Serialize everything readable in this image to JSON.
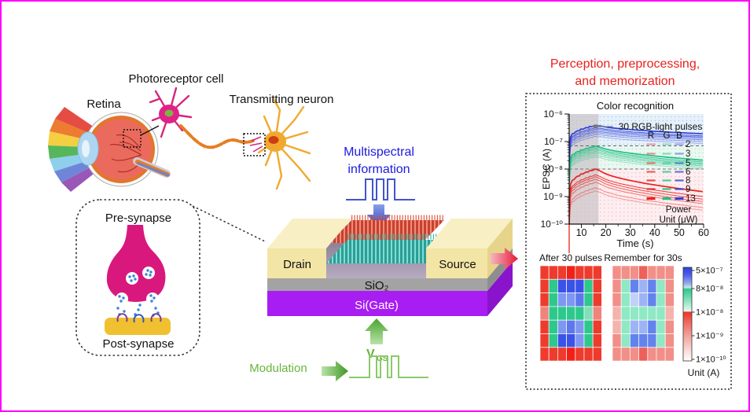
{
  "frame": {
    "border_color": "#ff00ff"
  },
  "anatomy": {
    "photoreceptor_label": "Photoreceptor cell",
    "retina_label": "Retina",
    "neuron_label": "Transmitting neuron"
  },
  "synapse": {
    "pre_label": "Pre-synapse",
    "post_label": "Post-synapse"
  },
  "device": {
    "input_line1": "Multispectral",
    "input_line2": "information",
    "drain": "Drain",
    "source": "Source",
    "oxide": "SiO₂",
    "gate": "Si(Gate)",
    "vgs_main": "V",
    "vgs_sub": "GS",
    "modulation": "Modulation"
  },
  "right_panel": {
    "title_line1": "Perception, preprocessing,",
    "title_line2": "and memorization"
  },
  "chart_data": {
    "type": "line",
    "title": "Color recognition",
    "xlabel": "Time (s)",
    "ylabel": "EPSC (A)",
    "x_range_s": [
      5,
      60
    ],
    "xticks": [
      10,
      20,
      30,
      40,
      50,
      60
    ],
    "xticks_minor": [
      15,
      25,
      35,
      45,
      55
    ],
    "y_log_range": [
      -10,
      -6
    ],
    "ytick_labels": [
      "10⁻⁶",
      "10⁻⁷",
      "10⁻⁸",
      "10⁻⁹",
      "10⁻¹⁰"
    ],
    "annotation": "30 RGB-light pulses",
    "stimulus_window_s": [
      5,
      17
    ],
    "dashed_levels_A": [
      7e-08,
      1e-08
    ],
    "legend": {
      "headers": [
        "R",
        "G",
        "B"
      ],
      "powers": [
        2,
        3,
        5,
        6,
        8,
        9,
        13
      ],
      "power_note_line1": "Power",
      "power_note_line2": "Unit (μW)"
    },
    "family_colors": {
      "R": "#e8231f",
      "G": "#1fbf83",
      "B": "#2e3fd8"
    },
    "series": [
      {
        "family": "R",
        "power": 2,
        "peak_A": 1.7e-09,
        "end_A": 3.2e-10
      },
      {
        "family": "R",
        "power": 3,
        "peak_A": 2.2e-09,
        "end_A": 4e-10
      },
      {
        "family": "R",
        "power": 5,
        "peak_A": 3.5e-09,
        "end_A": 5.5e-10
      },
      {
        "family": "R",
        "power": 6,
        "peak_A": 4.5e-09,
        "end_A": 6.5e-10
      },
      {
        "family": "R",
        "power": 8,
        "peak_A": 5.5e-09,
        "end_A": 8e-10
      },
      {
        "family": "R",
        "power": 9,
        "peak_A": 6.5e-09,
        "end_A": 1e-09
      },
      {
        "family": "R",
        "power": 13,
        "peak_A": 1.05e-08,
        "end_A": 1.5e-09
      },
      {
        "family": "G",
        "power": 2,
        "peak_A": 2.9e-08,
        "end_A": 1e-08
      },
      {
        "family": "G",
        "power": 3,
        "peak_A": 3.4e-08,
        "end_A": 1.15e-08
      },
      {
        "family": "G",
        "power": 5,
        "peak_A": 4e-08,
        "end_A": 1.3e-08
      },
      {
        "family": "G",
        "power": 6,
        "peak_A": 4.6e-08,
        "end_A": 1.45e-08
      },
      {
        "family": "G",
        "power": 8,
        "peak_A": 5.3e-08,
        "end_A": 1.6e-08
      },
      {
        "family": "G",
        "power": 9,
        "peak_A": 6e-08,
        "end_A": 1.8e-08
      },
      {
        "family": "G",
        "power": 13,
        "peak_A": 7e-08,
        "end_A": 2.1e-08
      },
      {
        "family": "B",
        "power": 2,
        "peak_A": 1.6e-07,
        "end_A": 8.5e-08
      },
      {
        "family": "B",
        "power": 3,
        "peak_A": 1.9e-07,
        "end_A": 1e-07
      },
      {
        "family": "B",
        "power": 5,
        "peak_A": 2.2e-07,
        "end_A": 1.15e-07
      },
      {
        "family": "B",
        "power": 6,
        "peak_A": 2.5e-07,
        "end_A": 1.3e-07
      },
      {
        "family": "B",
        "power": 8,
        "peak_A": 2.9e-07,
        "end_A": 1.45e-07
      },
      {
        "family": "B",
        "power": 9,
        "peak_A": 3.3e-07,
        "end_A": 1.6e-07
      },
      {
        "family": "B",
        "power": 13,
        "peak_A": 4e-07,
        "end_A": 1.9e-07
      }
    ]
  },
  "heatmaps": {
    "left": {
      "title": "After 30 pulses",
      "grid": [
        [
          "#ee3b2e",
          "#ee3b2e",
          "#ee3b2e",
          "#f32015",
          "#ee3b2e",
          "#ee3b2e",
          "#ee3b2e"
        ],
        [
          "#ee3b2e",
          "#2dc98c",
          "#3b52e8",
          "#3b52e8",
          "#3b52e8",
          "#2dc98c",
          "#ee3b2e"
        ],
        [
          "#ee3b2e",
          "#2dc98c",
          "#7e97f0",
          "#7e97f0",
          "#5c78ec",
          "#2dc98c",
          "#ee3b2e"
        ],
        [
          "#f0837b",
          "#2dc98c",
          "#2dc98c",
          "#2dc98c",
          "#2dc98c",
          "#82debb",
          "#f0837b"
        ],
        [
          "#ee3b2e",
          "#2dc98c",
          "#7e97f0",
          "#5c78ec",
          "#7e97f0",
          "#2dc98c",
          "#ee3b2e"
        ],
        [
          "#ee3b2e",
          "#2dc98c",
          "#3b52e8",
          "#3b52e8",
          "#7e97f0",
          "#2dc98c",
          "#ee3b2e"
        ],
        [
          "#ee3b2e",
          "#ee3b2e",
          "#ee3b2e",
          "#f32015",
          "#ee3b2e",
          "#ee3b2e",
          "#ee3b2e"
        ]
      ]
    },
    "right": {
      "title": "Remember for 30s",
      "grid": [
        [
          "#f28f88",
          "#f28f88",
          "#f28f88",
          "#ee6059",
          "#f28f88",
          "#f28f88",
          "#f28f88"
        ],
        [
          "#f28f88",
          "#8fe9c4",
          "#6283ee",
          "#9db4f4",
          "#6283ee",
          "#8fe9c4",
          "#f28f88"
        ],
        [
          "#f28f88",
          "#8fe9c4",
          "#c3d0f7",
          "#9db4f4",
          "#6283ee",
          "#8fe9c4",
          "#f28f88"
        ],
        [
          "#f5b3ae",
          "#8fe9c4",
          "#8fe9c4",
          "#8fe9c4",
          "#8fe9c4",
          "#8fe9c4",
          "#f5b3ae"
        ],
        [
          "#f5b3ae",
          "#8fe9c4",
          "#9db4f4",
          "#9db4f4",
          "#6283ee",
          "#8fe9c4",
          "#f28f88"
        ],
        [
          "#f28f88",
          "#8fe9c4",
          "#6283ee",
          "#6283ee",
          "#6283ee",
          "#8fe9c4",
          "#f28f88"
        ],
        [
          "#f28f88",
          "#f28f88",
          "#f28f88",
          "#ee6059",
          "#f28f88",
          "#f28f88",
          "#f28f88"
        ]
      ]
    },
    "colorbar": {
      "tick_labels": [
        "5×10⁻⁷",
        "8×10⁻⁸",
        "1×10⁻⁸",
        "1×10⁻⁹",
        "1×10⁻¹⁰"
      ],
      "unit_label": "Unit (A)"
    }
  }
}
